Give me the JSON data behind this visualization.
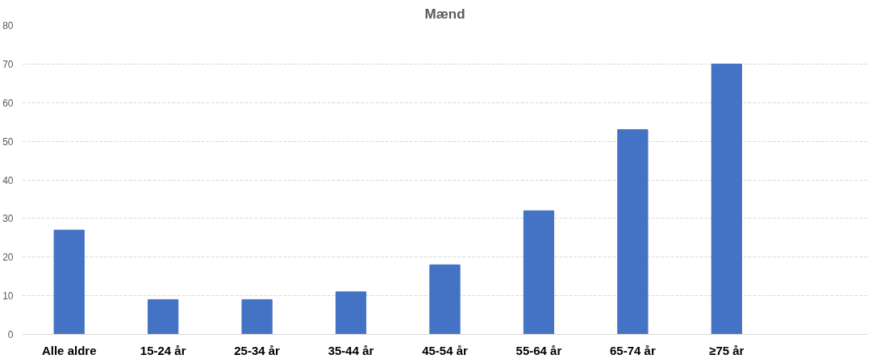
{
  "chart_data": {
    "type": "bar",
    "title": "Mænd",
    "categories": [
      "Alle aldre",
      "15-24 år",
      "25-34 år",
      "35-44 år",
      "45-54 år",
      "55-64 år",
      "65-74 år",
      "≥75 år",
      null
    ],
    "values": [
      27,
      9,
      9,
      11,
      18,
      32,
      53,
      70,
      null
    ],
    "color": "#4472c4",
    "ylim": [
      0,
      80
    ],
    "yticks": [
      0,
      10,
      20,
      30,
      40,
      50,
      60,
      70,
      80
    ],
    "grid": "y"
  }
}
